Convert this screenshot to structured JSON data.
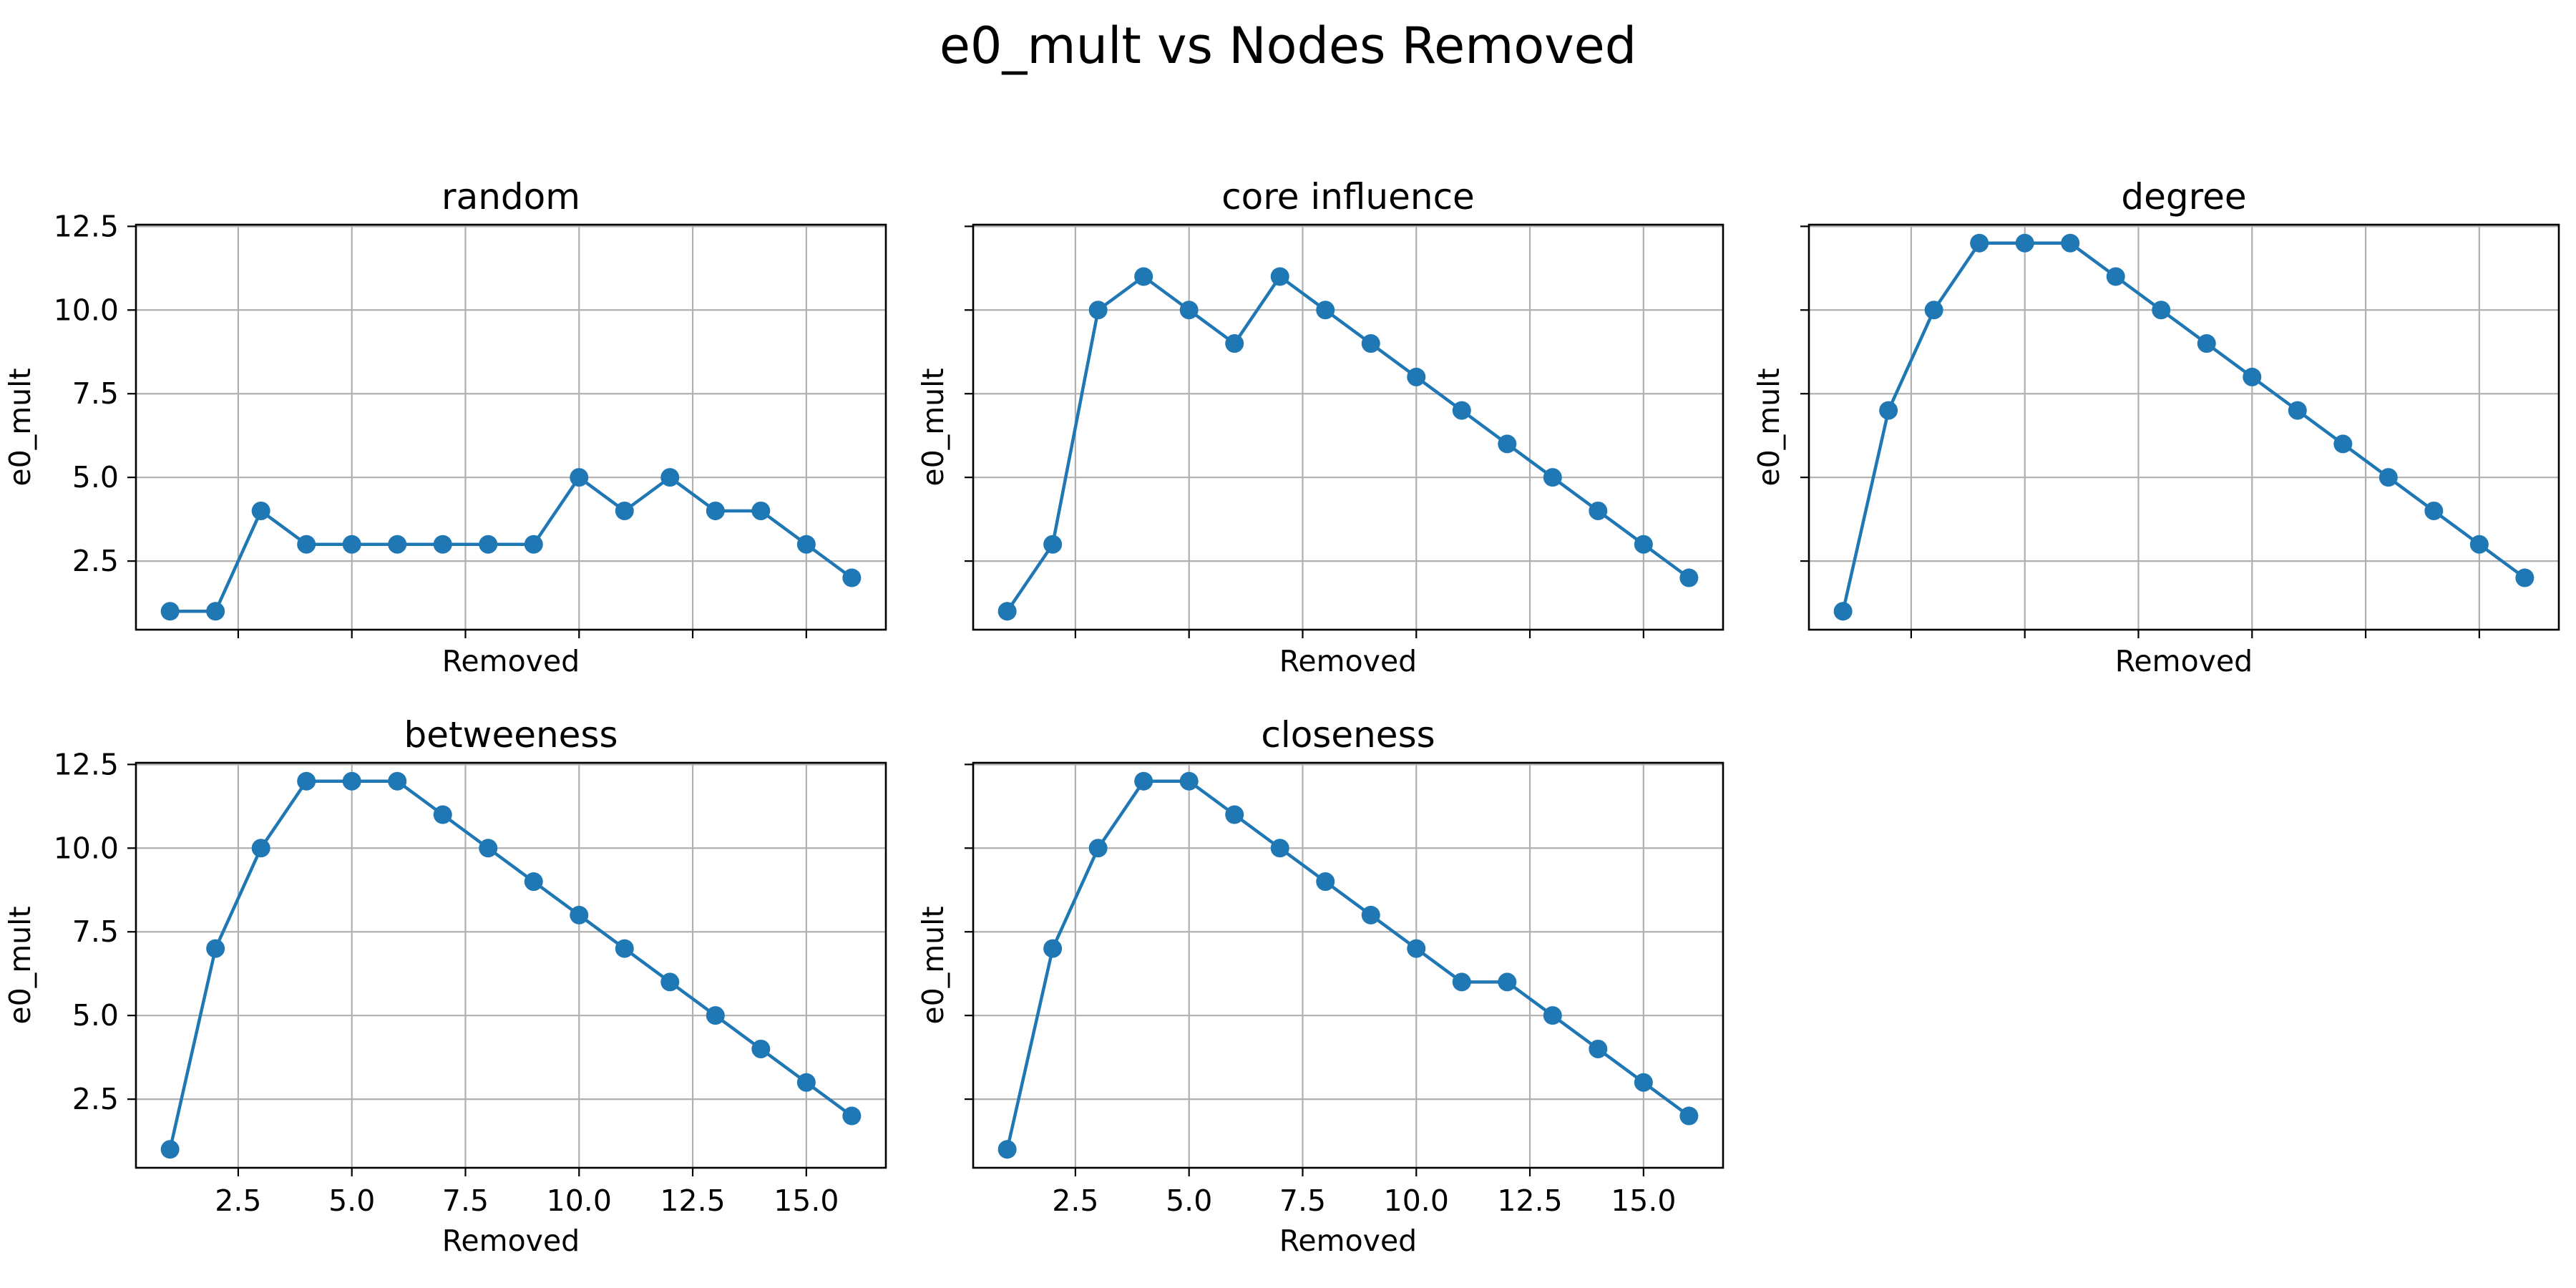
{
  "figure_title": "e0_mult vs Nodes Removed",
  "colors": {
    "series": "#1f77b4",
    "grid": "#b0b0b0",
    "axes": "#000000"
  },
  "chart_data": [
    {
      "type": "line",
      "title": "random",
      "xlabel": "Removed",
      "ylabel": "e0_mult",
      "x": [
        1,
        2,
        3,
        4,
        5,
        6,
        7,
        8,
        9,
        10,
        11,
        12,
        13,
        14,
        15,
        16
      ],
      "values": [
        1,
        1,
        4,
        3,
        3,
        3,
        3,
        3,
        3,
        5,
        4,
        5,
        4,
        4,
        3,
        2
      ],
      "xticks": [
        2.5,
        5.0,
        7.5,
        10.0,
        12.5,
        15.0
      ],
      "yticks": [
        2.5,
        5.0,
        7.5,
        10.0,
        12.5
      ],
      "xlim": [
        0.25,
        16.75
      ],
      "ylim": [
        0.45,
        12.55
      ],
      "show_xticklabels": false,
      "show_yticklabels": true,
      "grid": true,
      "marker": "circle"
    },
    {
      "type": "line",
      "title": "core influence",
      "xlabel": "Removed",
      "ylabel": "e0_mult",
      "x": [
        1,
        2,
        3,
        4,
        5,
        6,
        7,
        8,
        9,
        10,
        11,
        12,
        13,
        14,
        15,
        16
      ],
      "values": [
        1,
        3,
        10,
        11,
        10,
        9,
        11,
        10,
        9,
        8,
        7,
        6,
        5,
        4,
        3,
        2
      ],
      "xticks": [
        2.5,
        5.0,
        7.5,
        10.0,
        12.5,
        15.0
      ],
      "yticks": [
        2.5,
        5.0,
        7.5,
        10.0,
        12.5
      ],
      "xlim": [
        0.25,
        16.75
      ],
      "ylim": [
        0.45,
        12.55
      ],
      "show_xticklabels": false,
      "show_yticklabels": false,
      "grid": true,
      "marker": "circle"
    },
    {
      "type": "line",
      "title": "degree",
      "xlabel": "Removed",
      "ylabel": "e0_mult",
      "x": [
        1,
        2,
        3,
        4,
        5,
        6,
        7,
        8,
        9,
        10,
        11,
        12,
        13,
        14,
        15,
        16
      ],
      "values": [
        1,
        7,
        10,
        12,
        12,
        12,
        11,
        10,
        9,
        8,
        7,
        6,
        5,
        4,
        3,
        2
      ],
      "xticks": [
        2.5,
        5.0,
        7.5,
        10.0,
        12.5,
        15.0
      ],
      "yticks": [
        2.5,
        5.0,
        7.5,
        10.0,
        12.5
      ],
      "xlim": [
        0.25,
        16.75
      ],
      "ylim": [
        0.45,
        12.55
      ],
      "show_xticklabels": false,
      "show_yticklabels": false,
      "grid": true,
      "marker": "circle"
    },
    {
      "type": "line",
      "title": "betweeness",
      "xlabel": "Removed",
      "ylabel": "e0_mult",
      "x": [
        1,
        2,
        3,
        4,
        5,
        6,
        7,
        8,
        9,
        10,
        11,
        12,
        13,
        14,
        15,
        16
      ],
      "values": [
        1,
        7,
        10,
        12,
        12,
        12,
        11,
        10,
        9,
        8,
        7,
        6,
        5,
        4,
        3,
        2
      ],
      "xticks": [
        2.5,
        5.0,
        7.5,
        10.0,
        12.5,
        15.0
      ],
      "yticks": [
        2.5,
        5.0,
        7.5,
        10.0,
        12.5
      ],
      "xlim": [
        0.25,
        16.75
      ],
      "ylim": [
        0.45,
        12.55
      ],
      "show_xticklabels": true,
      "show_yticklabels": true,
      "grid": true,
      "marker": "circle"
    },
    {
      "type": "line",
      "title": "closeness",
      "xlabel": "Removed",
      "ylabel": "e0_mult",
      "x": [
        1,
        2,
        3,
        4,
        5,
        6,
        7,
        8,
        9,
        10,
        11,
        12,
        13,
        14,
        15,
        16
      ],
      "values": [
        1,
        7,
        10,
        12,
        12,
        11,
        10,
        9,
        8,
        7,
        6,
        6,
        5,
        4,
        3,
        2
      ],
      "xticks": [
        2.5,
        5.0,
        7.5,
        10.0,
        12.5,
        15.0
      ],
      "yticks": [
        2.5,
        5.0,
        7.5,
        10.0,
        12.5
      ],
      "xlim": [
        0.25,
        16.75
      ],
      "ylim": [
        0.45,
        12.55
      ],
      "show_xticklabels": true,
      "show_yticklabels": false,
      "grid": true,
      "marker": "circle"
    }
  ]
}
